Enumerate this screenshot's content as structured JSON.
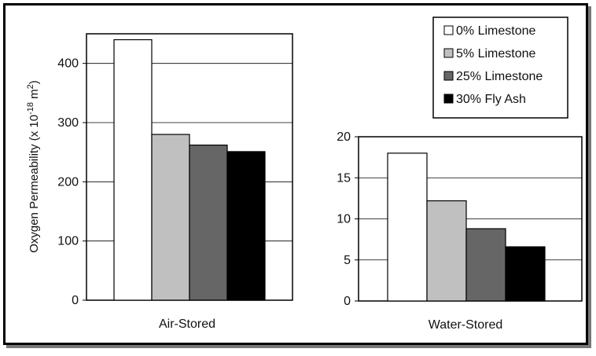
{
  "chart_data": [
    {
      "type": "bar",
      "xlabel": "Air-Stored",
      "ylabel": "Oxygen Permeability (x 10",
      "ylabel_exp": "-18",
      "ylabel_unit": " m",
      "ylabel_unit_exp": "2",
      "ylabel_close": ")",
      "ylim": [
        0,
        450
      ],
      "yticks": [
        0,
        100,
        200,
        300,
        400
      ],
      "grid": true,
      "series": [
        {
          "name": "0% Limestone",
          "values": [
            440
          ]
        },
        {
          "name": "5% Limestone",
          "values": [
            280
          ]
        },
        {
          "name": "25% Limestone",
          "values": [
            262
          ]
        },
        {
          "name": "30% Fly Ash",
          "values": [
            251
          ]
        }
      ]
    },
    {
      "type": "bar",
      "xlabel": "Water-Stored",
      "ylim": [
        0,
        20
      ],
      "yticks": [
        0,
        5,
        10,
        15,
        20
      ],
      "grid": true,
      "series": [
        {
          "name": "0% Limestone",
          "values": [
            18
          ]
        },
        {
          "name": "5% Limestone",
          "values": [
            12.2
          ]
        },
        {
          "name": "25% Limestone",
          "values": [
            8.8
          ]
        },
        {
          "name": "30% Fly Ash",
          "values": [
            6.6
          ]
        }
      ]
    }
  ],
  "legend": {
    "placement": "top-right",
    "items": [
      "0% Limestone",
      "5% Limestone",
      "25% Limestone",
      "30% Fly Ash"
    ]
  },
  "colors": {
    "0% Limestone": "#ffffff",
    "5% Limestone": "#c0c0c0",
    "25% Limestone": "#666666",
    "30% Fly Ash": "#000000"
  }
}
